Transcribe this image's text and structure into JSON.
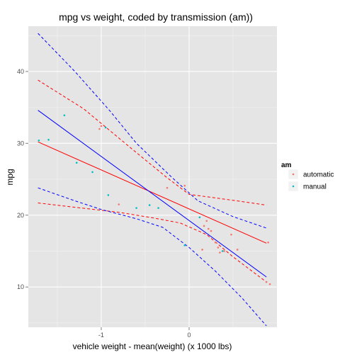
{
  "chart_data": {
    "type": "scatter",
    "title": "mpg vs weight, coded by transmission (am))",
    "xlabel": "vehicle weight - mean(weight) (x 1000 lbs)",
    "ylabel": "mpg",
    "xlim": [
      -1.83,
      1.0
    ],
    "ylim": [
      4.4,
      46.3
    ],
    "xticks": [
      {
        "value": -1,
        "label": "-1"
      },
      {
        "value": 0,
        "label": "0"
      }
    ],
    "yticks": [
      {
        "value": 10,
        "label": "10"
      },
      {
        "value": 20,
        "label": "20"
      },
      {
        "value": 30,
        "label": "30"
      },
      {
        "value": 40,
        "label": "40"
      }
    ],
    "grid": true,
    "legend": {
      "title": "am",
      "placement": "right"
    },
    "series": [
      {
        "name": "automatic",
        "color": "#F8766D",
        "line_color": "#FF0000",
        "points": [
          [
            -1.02,
            32.0
          ],
          [
            -1.0,
            32.4
          ],
          [
            -0.8,
            21.5
          ],
          [
            -0.25,
            23.8
          ],
          [
            -0.05,
            24.1
          ],
          [
            0.15,
            15.2
          ],
          [
            0.17,
            18.5
          ],
          [
            0.2,
            19.2
          ],
          [
            0.22,
            18.1
          ],
          [
            0.25,
            17.8
          ],
          [
            0.3,
            16.2
          ],
          [
            0.33,
            15.5
          ],
          [
            0.35,
            14.8
          ],
          [
            0.4,
            15.0
          ],
          [
            0.48,
            17.3
          ],
          [
            0.55,
            15.2
          ],
          [
            0.88,
            10.7
          ],
          [
            0.9,
            16.2
          ],
          [
            0.92,
            10.4
          ]
        ],
        "fit": [
          [
            -1.72,
            30.2
          ],
          [
            0.88,
            16.1
          ]
        ],
        "ci_upper": [
          [
            -1.72,
            38.8
          ],
          [
            -1.2,
            34.8
          ],
          [
            -0.6,
            28.7
          ],
          [
            -0.25,
            25.2
          ],
          [
            0.0,
            22.9
          ],
          [
            0.3,
            22.4
          ],
          [
            0.6,
            21.9
          ],
          [
            0.88,
            21.4
          ]
        ],
        "ci_lower": [
          [
            -1.72,
            21.7
          ],
          [
            -1.3,
            21.1
          ],
          [
            -0.8,
            20.4
          ],
          [
            -0.4,
            19.6
          ],
          [
            -0.1,
            18.9
          ],
          [
            0.2,
            17.3
          ],
          [
            0.5,
            14.2
          ],
          [
            0.88,
            10.7
          ]
        ]
      },
      {
        "name": "manual",
        "color": "#00BFC4",
        "line_color": "#0000FF",
        "points": [
          [
            -1.71,
            30.4
          ],
          [
            -1.6,
            30.5
          ],
          [
            -1.42,
            33.9
          ],
          [
            -1.28,
            27.3
          ],
          [
            -1.1,
            26.0
          ],
          [
            -0.95,
            32.2
          ],
          [
            -0.92,
            22.8
          ],
          [
            -0.6,
            21.0
          ],
          [
            -0.45,
            21.4
          ],
          [
            -0.35,
            21.0
          ],
          [
            -0.05,
            15.8
          ],
          [
            0.12,
            19.7
          ],
          [
            0.38,
            15.0
          ]
        ],
        "fit": [
          [
            -1.72,
            34.6
          ],
          [
            0.88,
            11.4
          ]
        ],
        "ci_upper": [
          [
            -1.72,
            45.3
          ],
          [
            -1.3,
            40.0
          ],
          [
            -0.9,
            34.5
          ],
          [
            -0.6,
            30.0
          ],
          [
            -0.2,
            25.3
          ],
          [
            0.1,
            22.0
          ],
          [
            0.5,
            19.8
          ],
          [
            0.88,
            18.2
          ]
        ],
        "ci_lower": [
          [
            -1.72,
            23.8
          ],
          [
            -1.3,
            22.0
          ],
          [
            -1.0,
            20.8
          ],
          [
            -0.6,
            19.5
          ],
          [
            -0.3,
            18.3
          ],
          [
            0.0,
            15.5
          ],
          [
            0.3,
            12.2
          ],
          [
            0.6,
            8.5
          ],
          [
            0.88,
            4.6
          ]
        ]
      }
    ]
  }
}
